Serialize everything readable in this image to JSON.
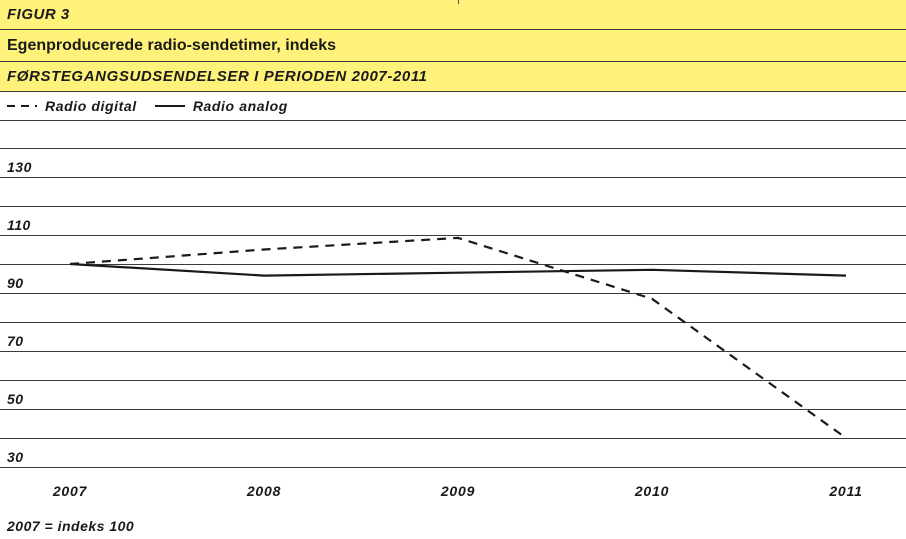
{
  "figure_label": "FIGUR 3",
  "footnote": "2007 = indeks 100",
  "colors": {
    "band": "#fff27a",
    "line": "#1a1a1a",
    "grid": "#3a3a3a"
  },
  "legend": [
    {
      "label": "Radio digital",
      "style": "dashed"
    },
    {
      "label": "Radio analog",
      "style": "solid"
    }
  ],
  "chart_data": {
    "type": "line",
    "title": "Egenproducerede radio-sendetimer, indeks",
    "subtitle": "FØRSTEGANGSUDSENDELSER I PERIODEN 2007-2011",
    "x": [
      "2007",
      "2008",
      "2009",
      "2010",
      "2011"
    ],
    "series": [
      {
        "name": "Radio digital",
        "style": "dashed",
        "values": [
          100,
          105,
          109,
          88,
          40
        ]
      },
      {
        "name": "Radio analog",
        "style": "solid",
        "values": [
          100,
          96,
          97,
          98,
          96
        ]
      }
    ],
    "yticks": [
      30,
      50,
      70,
      90,
      110,
      130
    ],
    "ylim": [
      30,
      140
    ],
    "grid": true,
    "legend_position": "top-left"
  }
}
